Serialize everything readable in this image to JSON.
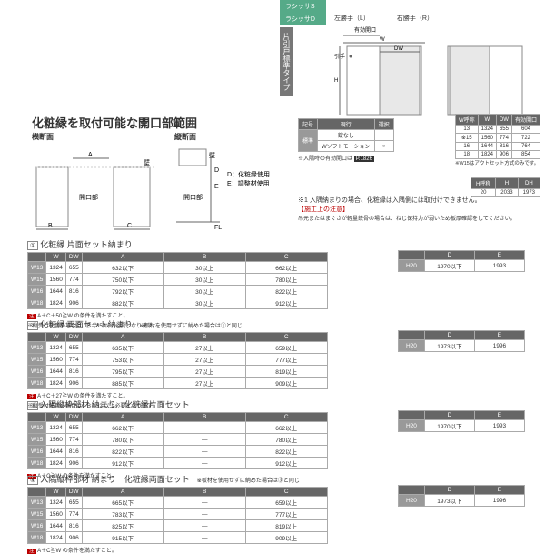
{
  "title": "化粧縁を取付可能な開口部範囲",
  "diagram": {
    "cross_label": "横断面",
    "long_label": "縦断面",
    "labels": {
      "A": "A",
      "wall": "壁",
      "opening": "開口部",
      "B": "B",
      "C": "C",
      "D": "D",
      "E": "E",
      "FL": "FL",
      "D_note": "D：化粧縁使用",
      "E_note": "E：調整材使用"
    }
  },
  "top_right": {
    "tab1": "ラシッサS",
    "tab2": "ラシッサD",
    "vtab": "片引戸標準タイプ",
    "left_hand": "左勝手（L）",
    "right_hand": "右勝手（R）",
    "eff_open": "有効開口",
    "W": "W",
    "DW": "DW",
    "H": "H",
    "hikite": "引手",
    "sym_hdr": [
      "記号",
      "現行",
      "選択"
    ],
    "sym_rows": [
      [
        "標準",
        "錠なし",
        ""
      ],
      [
        "標準",
        "Wソフトモーション",
        "○"
      ]
    ],
    "sym_note": "※入隅時の有効開口は",
    "sym_badge": "P.1826",
    "dim_hdr": [
      "W呼称",
      "W",
      "DW",
      "有効開口"
    ],
    "dim_rows": [
      [
        "13",
        "1324",
        "655",
        "604"
      ],
      [
        "※15",
        "1560",
        "774",
        "722"
      ],
      [
        "16",
        "1644",
        "816",
        "764"
      ],
      [
        "18",
        "1824",
        "906",
        "854"
      ]
    ],
    "dim_note": "※W15はアウトセット方式のみです。",
    "h_hdr": [
      "H呼称",
      "H",
      "DH"
    ],
    "h_row": [
      "20",
      "2033",
      "1973"
    ],
    "warn1": "※1 入隅納まりの場合、化粧縁は入隅側には取付けできません。",
    "warn2": "【施工上の注意】",
    "warn3": "吊元またはまぐさが軽量鉄骨の場合は、ねじ保持力が弱いため板厚確認をしてください。"
  },
  "sections": [
    {
      "num": "①",
      "title": "化粧縁 片面セット納まり",
      "hdr": [
        "",
        "W",
        "DW",
        "A",
        "B",
        "C"
      ],
      "rows": [
        [
          "W13",
          "1324",
          "655",
          "632以下",
          "30以上",
          "662以上"
        ],
        [
          "W15",
          "1560",
          "774",
          "750以下",
          "30以上",
          "780以上"
        ],
        [
          "W16",
          "1644",
          "816",
          "792以下",
          "30以上",
          "822以上"
        ],
        [
          "W18",
          "1824",
          "906",
          "882以下",
          "30以上",
          "912以上"
        ]
      ],
      "note_badge": "注",
      "note1": "A＋C＋50≧W の条件を満たすこと。",
      "note2": "※縦受け使用の場合は、B＝35 以上必要となります。",
      "rt_hdr": [
        "",
        "D",
        "E"
      ],
      "rt_row": [
        "H20",
        "1970以下",
        "1993"
      ]
    },
    {
      "num": "②",
      "title": "化粧縁 両面セット納まり",
      "sub": "※板材を使用せずに納めた場合は①と同じ",
      "hdr": [
        "",
        "W",
        "DW",
        "A",
        "B",
        "C"
      ],
      "rows": [
        [
          "W13",
          "1324",
          "655",
          "635以下",
          "27以上",
          "659以上"
        ],
        [
          "W15",
          "1560",
          "774",
          "753以下",
          "27以上",
          "777以上"
        ],
        [
          "W16",
          "1644",
          "816",
          "795以下",
          "27以上",
          "819以上"
        ],
        [
          "W18",
          "1824",
          "906",
          "885以下",
          "27以上",
          "909以上"
        ]
      ],
      "note_badge": "注",
      "note1": "A＋C＋27≧W の条件を満たすこと。",
      "note2": "※縦受け使用の場合は、B＝32 以上必要となります。",
      "rt_hdr": [
        "",
        "D",
        "E"
      ],
      "rt_row": [
        "H20",
        "1973以下",
        "1996"
      ]
    },
    {
      "num": "③",
      "title": "入隅縦枠部材 納まり　化粧縁片面セット",
      "hdr": [
        "",
        "W",
        "DW",
        "A",
        "B",
        "C"
      ],
      "rows": [
        [
          "W13",
          "1324",
          "655",
          "662以下",
          "—",
          "662以上"
        ],
        [
          "W15",
          "1560",
          "774",
          "780以下",
          "—",
          "780以上"
        ],
        [
          "W16",
          "1644",
          "816",
          "822以下",
          "—",
          "822以上"
        ],
        [
          "W18",
          "1824",
          "906",
          "912以下",
          "—",
          "912以上"
        ]
      ],
      "note_badge": "注",
      "note1": "A＋C≧W の条件を満たすこと。",
      "note2": "",
      "rt_hdr": [
        "",
        "D",
        "E"
      ],
      "rt_row": [
        "H20",
        "1970以下",
        "1993"
      ]
    },
    {
      "num": "④",
      "title": "入隅縦枠部材 納まり　化粧縁両面セット",
      "sub": "※板材を使用せずに納めた場合は③と同じ",
      "hdr": [
        "",
        "W",
        "DW",
        "A",
        "B",
        "C"
      ],
      "rows": [
        [
          "W13",
          "1324",
          "655",
          "665以下",
          "—",
          "659以上"
        ],
        [
          "W15",
          "1560",
          "774",
          "783以下",
          "—",
          "777以上"
        ],
        [
          "W16",
          "1644",
          "816",
          "825以下",
          "—",
          "819以上"
        ],
        [
          "W18",
          "1824",
          "906",
          "915以下",
          "—",
          "909以上"
        ]
      ],
      "note_badge": "注",
      "note1": "A＋C≧W の条件を満たすこと。",
      "note2": "",
      "rt_hdr": [
        "",
        "D",
        "E"
      ],
      "rt_row": [
        "H20",
        "1973以下",
        "1996"
      ]
    }
  ]
}
